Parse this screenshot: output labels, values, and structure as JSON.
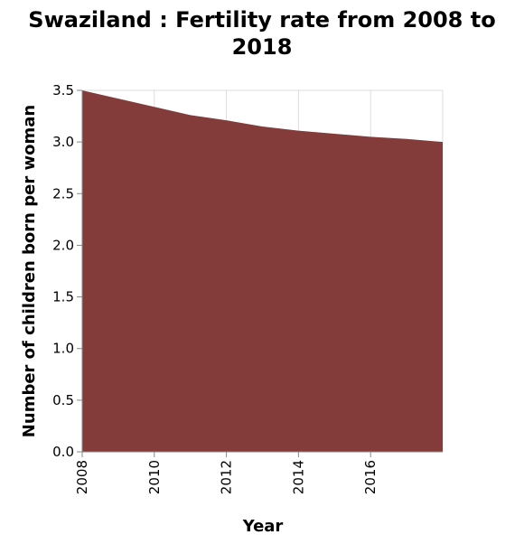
{
  "chart_data": {
    "type": "area",
    "title": "Swaziland : Fertility rate from 2008 to 2018",
    "xlabel": "Year",
    "ylabel": "Number of children born per woman",
    "x": [
      2008,
      2009,
      2010,
      2011,
      2012,
      2013,
      2014,
      2015,
      2016,
      2017,
      2018
    ],
    "y": [
      3.5,
      3.42,
      3.34,
      3.26,
      3.21,
      3.15,
      3.11,
      3.08,
      3.05,
      3.03,
      3.0
    ],
    "xlim": [
      2008,
      2018
    ],
    "ylim": [
      0,
      3.5
    ],
    "x_ticks": [
      2008,
      2010,
      2012,
      2014,
      2016
    ],
    "y_ticks": [
      "0.0",
      "0.5",
      "1.0",
      "1.5",
      "2.0",
      "2.5",
      "3.0",
      "3.5"
    ],
    "grid": true,
    "legend": "none",
    "fill_color": "#833c3a"
  }
}
